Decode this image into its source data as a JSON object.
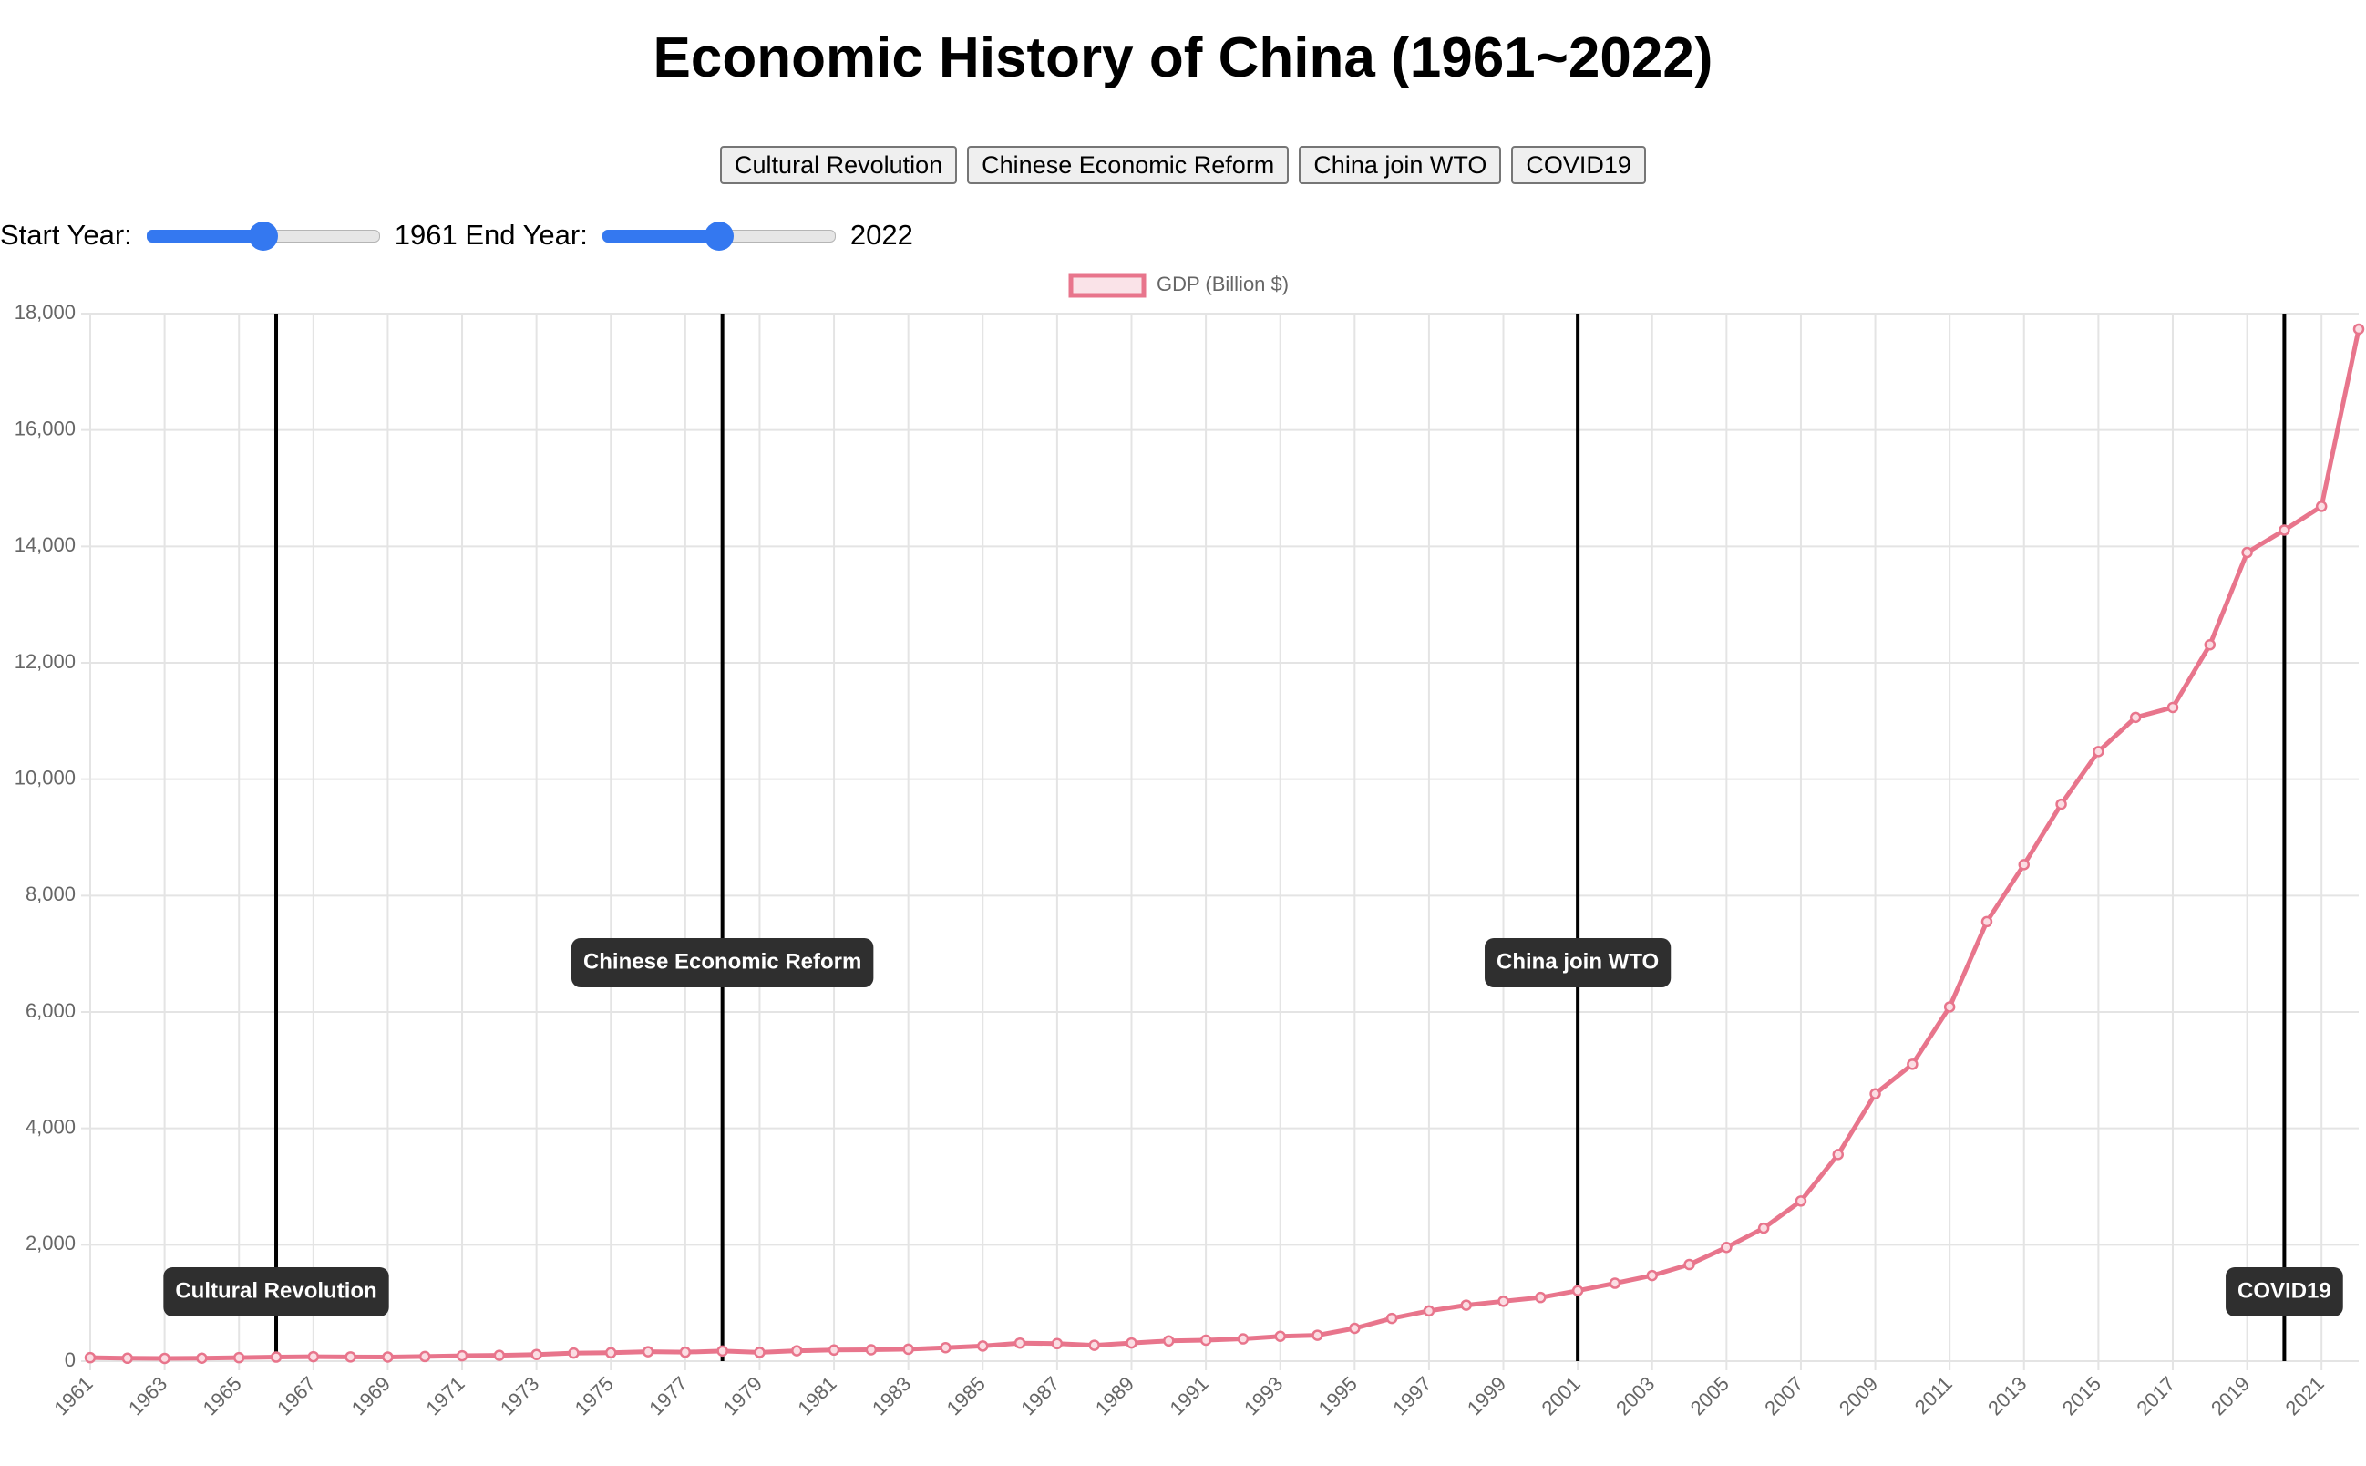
{
  "page": {
    "buttons": [
      "Cultural Revolution",
      "Chinese Economic Reform",
      "China join WTO",
      "COVID19"
    ],
    "controls": {
      "start_label": "Start Year:",
      "start_value": 1961,
      "end_label": "End Year:",
      "end_value": 2022
    }
  },
  "chart_data": {
    "type": "line",
    "title": "Economic History of China (1961~2022)",
    "x": [
      1961,
      1962,
      1963,
      1964,
      1965,
      1966,
      1967,
      1968,
      1969,
      1970,
      1971,
      1972,
      1973,
      1974,
      1975,
      1976,
      1977,
      1978,
      1979,
      1980,
      1981,
      1982,
      1983,
      1984,
      1985,
      1986,
      1987,
      1988,
      1989,
      1990,
      1991,
      1992,
      1993,
      1994,
      1995,
      1996,
      1997,
      1998,
      1999,
      2000,
      2001,
      2002,
      2003,
      2004,
      2005,
      2006,
      2007,
      2008,
      2009,
      2010,
      2011,
      2012,
      2013,
      2014,
      2015,
      2016,
      2017,
      2018,
      2019,
      2020,
      2021,
      2022
    ],
    "series": [
      {
        "name": "GDP (Billion $)",
        "color": "#e8758c",
        "values": [
          60,
          50,
          47,
          51,
          60,
          70,
          77,
          73,
          71,
          80,
          93,
          100,
          114,
          139,
          144,
          163,
          154,
          175,
          150,
          178,
          191,
          196,
          205,
          231,
          260,
          310,
          301,
          273,
          312,
          348,
          361,
          383,
          427,
          445,
          564,
          735,
          864,
          962,
          1029,
          1094,
          1211,
          1339,
          1471,
          1660,
          1955,
          2286,
          2752,
          3550,
          4594,
          5102,
          6087,
          7552,
          8532,
          9570,
          10475,
          11062,
          11233,
          12310,
          13895,
          14280,
          14688,
          17734
        ]
      }
    ],
    "xlim": [
      1961,
      2022
    ],
    "xticks": [
      1961,
      1963,
      1965,
      1967,
      1969,
      1971,
      1973,
      1975,
      1977,
      1979,
      1981,
      1983,
      1985,
      1987,
      1989,
      1991,
      1993,
      1995,
      1997,
      1999,
      2001,
      2003,
      2005,
      2007,
      2009,
      2011,
      2013,
      2015,
      2017,
      2019,
      2021
    ],
    "ylim": [
      0,
      18000
    ],
    "yticks": [
      0,
      {
        "value": 2000,
        "label": "2,000"
      },
      {
        "value": 4000,
        "label": "4,000"
      },
      {
        "value": 6000,
        "label": "6,000"
      },
      {
        "value": 8000,
        "label": "8,000"
      },
      {
        "value": 10000,
        "label": "10,000"
      },
      {
        "value": 12000,
        "label": "12,000"
      },
      {
        "value": 14000,
        "label": "14,000"
      },
      {
        "value": 16000,
        "label": "16,000"
      },
      {
        "value": 18000,
        "label": "18,000"
      }
    ],
    "grid": true,
    "legend": "top",
    "annotations": [
      {
        "label": "Cultural Revolution",
        "x": 1966
      },
      {
        "label": "Chinese Economic Reform",
        "x": 1978
      },
      {
        "label": "China join WTO",
        "x": 2001
      },
      {
        "label": "COVID19",
        "x": 2020
      }
    ]
  }
}
